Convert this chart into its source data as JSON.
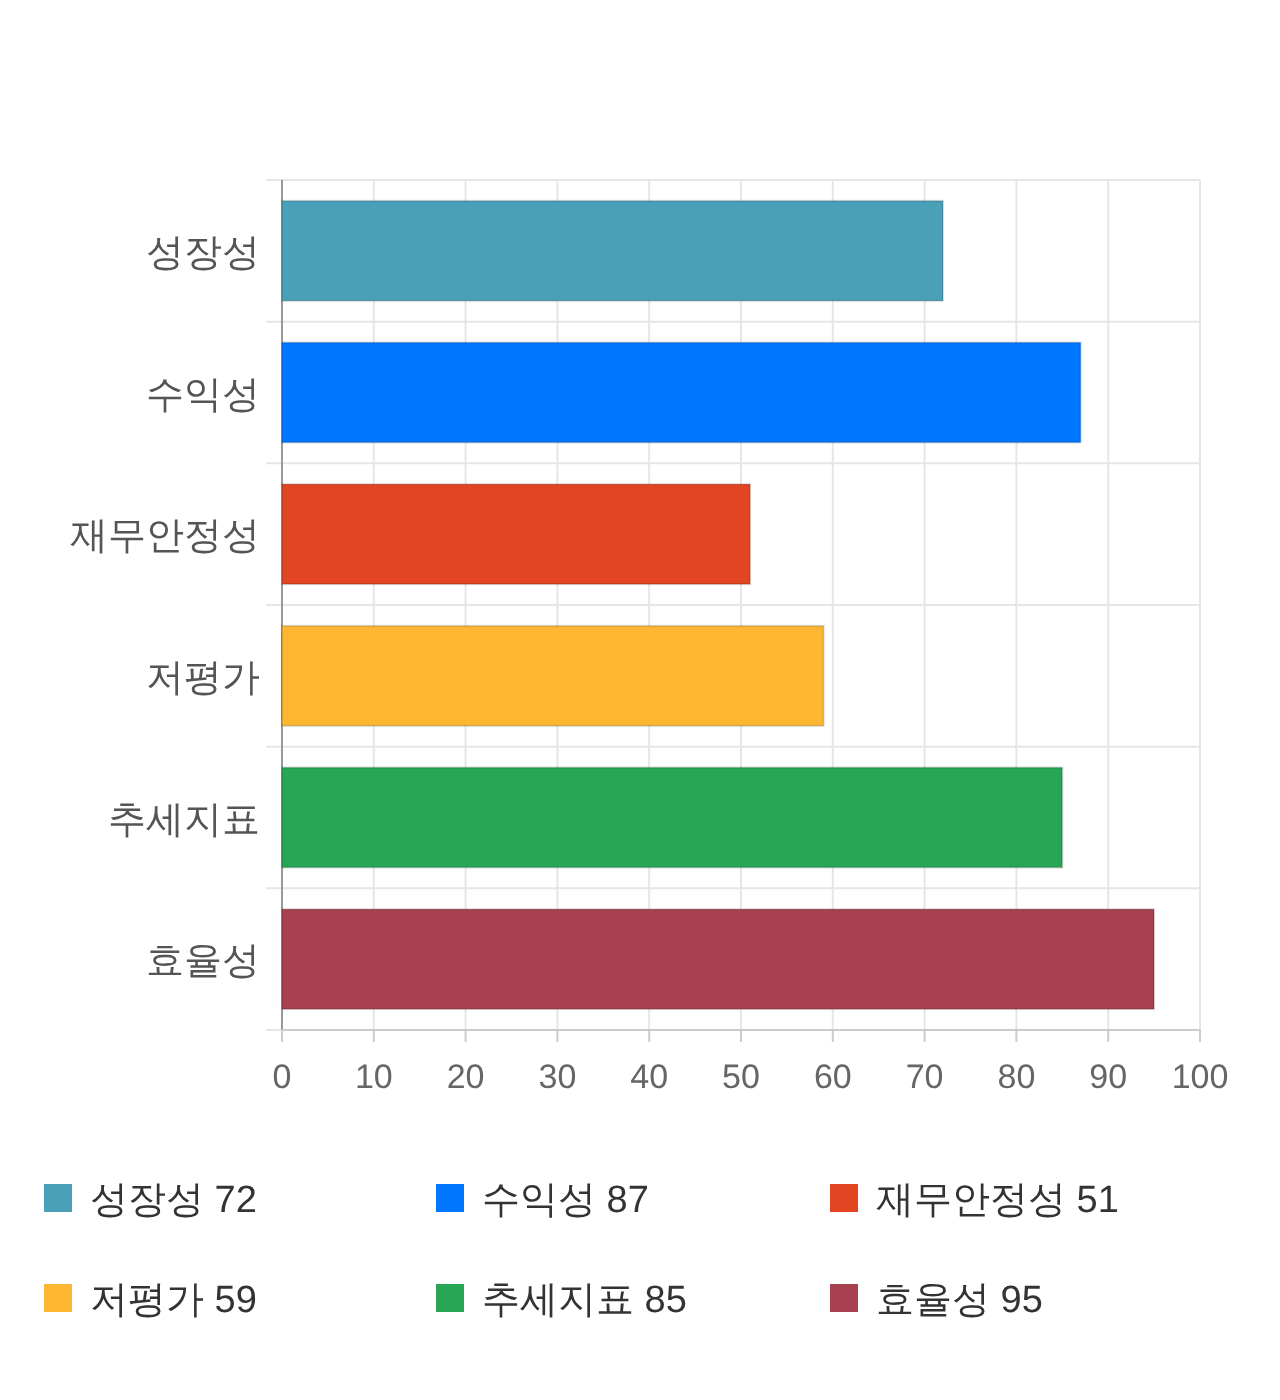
{
  "chart_data": {
    "type": "bar",
    "orientation": "horizontal",
    "stacked": true,
    "categories": [
      "성장성",
      "수익성",
      "재무안정성",
      "저평가",
      "추세지표",
      "효율성"
    ],
    "series": [
      {
        "name": "성장성 72",
        "color": "#4aa0b8",
        "values": [
          72,
          null,
          null,
          null,
          null,
          null
        ]
      },
      {
        "name": "수익성 87",
        "color": "#0077ff",
        "values": [
          null,
          87,
          null,
          null,
          null,
          null
        ]
      },
      {
        "name": "재무안정성 51",
        "color": "#e24522",
        "values": [
          null,
          null,
          51,
          null,
          null,
          null
        ]
      },
      {
        "name": "저평가 59",
        "color": "#fdb732",
        "values": [
          null,
          null,
          null,
          59,
          null,
          null
        ]
      },
      {
        "name": "추세지표 85",
        "color": "#28a656",
        "values": [
          null,
          null,
          null,
          null,
          85,
          null
        ]
      },
      {
        "name": "효율성 95",
        "color": "#a8414f",
        "values": [
          null,
          null,
          null,
          null,
          null,
          95
        ]
      }
    ],
    "xlim": [
      0,
      100
    ],
    "xticks": [
      0,
      10,
      20,
      30,
      40,
      50,
      60,
      70,
      80,
      90,
      100
    ],
    "grid": true,
    "legend": "bottom"
  }
}
